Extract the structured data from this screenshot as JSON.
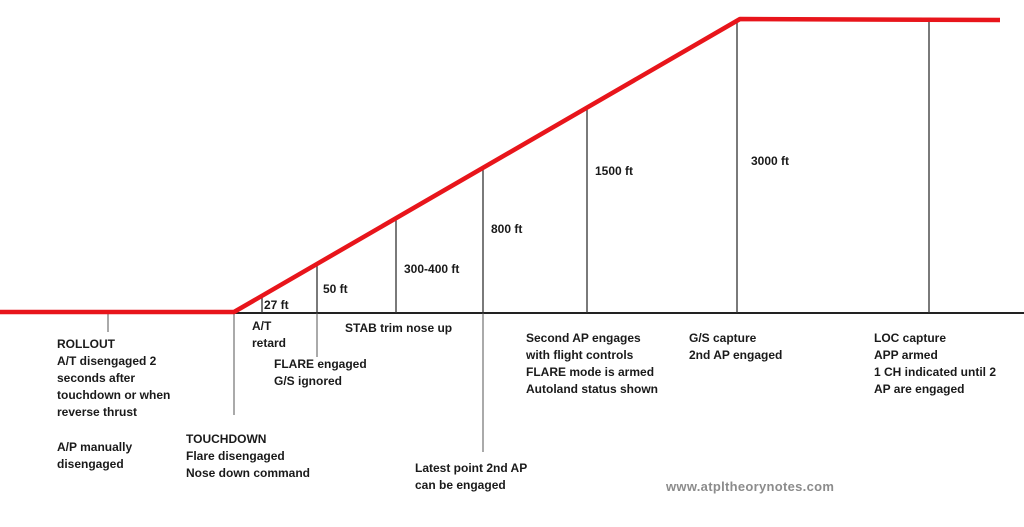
{
  "colors": {
    "path": "#e8151b",
    "ground": "#222222",
    "marker": "#333333",
    "text": "#1a1a1a",
    "watermark": "#8c8c8c"
  },
  "altitudes": {
    "a27": "27 ft",
    "a50": "50 ft",
    "a300": "300-400 ft",
    "a800": "800 ft",
    "a1500": "1500 ft",
    "a3000": "3000 ft"
  },
  "phases": {
    "rollout": [
      "ROLLOUT",
      "A/T disengaged 2",
      "seconds after",
      "touchdown or when",
      "reverse thrust"
    ],
    "ap_manual": [
      "A/P manually",
      "disengaged"
    ],
    "touchdown": [
      "TOUCHDOWN",
      "Flare disengaged",
      "Nose down command"
    ],
    "at_retard": [
      "A/T",
      "retard"
    ],
    "flare": [
      "FLARE engaged",
      "G/S ignored"
    ],
    "stab": [
      "STAB trim nose up"
    ],
    "latest": [
      "Latest point 2nd AP",
      "can be engaged"
    ],
    "second_ap": [
      "Second AP engages",
      "with flight controls",
      "FLARE mode is armed",
      "Autoland status shown"
    ],
    "gs": [
      "G/S capture",
      "2nd AP engaged"
    ],
    "loc": [
      "LOC capture",
      "APP armed",
      "1 CH indicated until 2",
      "AP are engaged"
    ]
  },
  "watermark": "www.atpltheorynotes.com"
}
